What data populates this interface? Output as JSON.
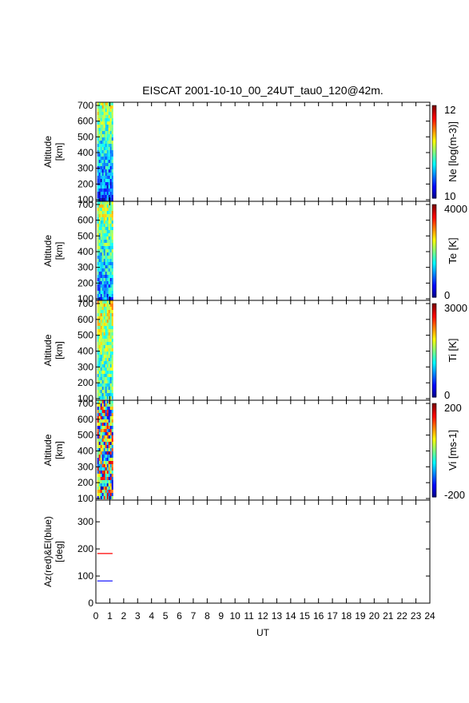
{
  "chart_data": {
    "type": "heatmap",
    "title": "EISCAT 2001-10-10_00_24UT_tau0_120@42m.",
    "xlabel": "UT",
    "xlim": [
      0,
      24
    ],
    "x_ticks": [
      "0",
      "1",
      "2",
      "3",
      "4",
      "5",
      "6",
      "7",
      "8",
      "9",
      "10",
      "11",
      "12",
      "13",
      "14",
      "15",
      "16",
      "17",
      "18",
      "19",
      "20",
      "21",
      "22",
      "23",
      "24"
    ],
    "data_time_range": [
      0.1,
      1.2
    ],
    "panels": [
      {
        "ylabel": [
          "Altitude",
          "[km]"
        ],
        "ylim": [
          90,
          720
        ],
        "y_ticks": [
          100,
          200,
          300,
          400,
          500,
          600,
          700
        ],
        "colorbar_label": "Ne [log(m-3)]",
        "colorbar_ticks": [
          "10",
          "12"
        ]
      },
      {
        "ylabel": [
          "Altitude",
          "[km]"
        ],
        "ylim": [
          90,
          720
        ],
        "y_ticks": [
          100,
          200,
          300,
          400,
          500,
          600,
          700
        ],
        "colorbar_label": "Te [K]",
        "colorbar_ticks": [
          "0",
          "4000"
        ]
      },
      {
        "ylabel": [
          "Altitude",
          "[km]"
        ],
        "ylim": [
          90,
          720
        ],
        "y_ticks": [
          100,
          200,
          300,
          400,
          500,
          600,
          700
        ],
        "colorbar_label": "Ti [K]",
        "colorbar_ticks": [
          "0",
          "3000"
        ]
      },
      {
        "ylabel": [
          "Altitude",
          "[km]"
        ],
        "ylim": [
          90,
          720
        ],
        "y_ticks": [
          100,
          200,
          300,
          400,
          500,
          600,
          700
        ],
        "colorbar_label": "Vi [ms-1]",
        "colorbar_ticks": [
          "-200",
          "200"
        ]
      }
    ],
    "pointing_panel": {
      "ylabel": [
        "Az(red)&El(blue)",
        "[deg]"
      ],
      "ylim": [
        0,
        380
      ],
      "y_ticks": [
        0,
        100,
        200,
        300
      ],
      "series": [
        {
          "color": "#ff0000",
          "x": [
            0.1,
            1.2
          ],
          "y": [
            183,
            183
          ]
        },
        {
          "color": "#0000ff",
          "x": [
            0.1,
            1.2
          ],
          "y": [
            82,
            82
          ]
        }
      ]
    }
  }
}
